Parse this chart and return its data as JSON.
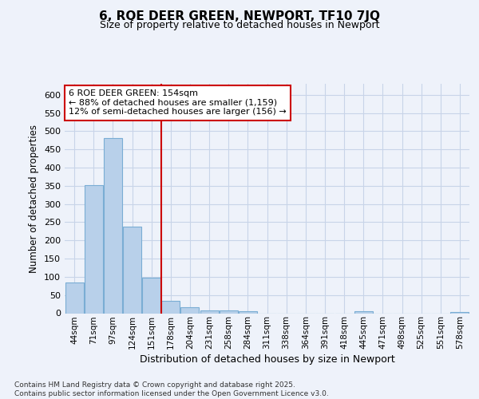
{
  "title": "6, ROE DEER GREEN, NEWPORT, TF10 7JQ",
  "subtitle": "Size of property relative to detached houses in Newport",
  "xlabel": "Distribution of detached houses by size in Newport",
  "ylabel": "Number of detached properties",
  "categories": [
    "44sqm",
    "71sqm",
    "97sqm",
    "124sqm",
    "151sqm",
    "178sqm",
    "204sqm",
    "231sqm",
    "258sqm",
    "284sqm",
    "311sqm",
    "338sqm",
    "364sqm",
    "391sqm",
    "418sqm",
    "445sqm",
    "471sqm",
    "498sqm",
    "525sqm",
    "551sqm",
    "578sqm"
  ],
  "values": [
    85,
    352,
    480,
    237,
    97,
    35,
    17,
    7,
    7,
    6,
    0,
    0,
    0,
    0,
    0,
    5,
    0,
    0,
    0,
    0,
    3
  ],
  "bar_color": "#b8d0ea",
  "bar_edge_color": "#7aadd4",
  "grid_color": "#c8d4e8",
  "vline_x": 4.5,
  "vline_color": "#cc0000",
  "annotation_text": "6 ROE DEER GREEN: 154sqm\n← 88% of detached houses are smaller (1,159)\n12% of semi-detached houses are larger (156) →",
  "annotation_box_color": "#cc0000",
  "ylim": [
    0,
    630
  ],
  "yticks": [
    0,
    50,
    100,
    150,
    200,
    250,
    300,
    350,
    400,
    450,
    500,
    550,
    600
  ],
  "footer": "Contains HM Land Registry data © Crown copyright and database right 2025.\nContains public sector information licensed under the Open Government Licence v3.0.",
  "bg_color": "#eef2fa",
  "plot_bg_color": "#eef2fa"
}
